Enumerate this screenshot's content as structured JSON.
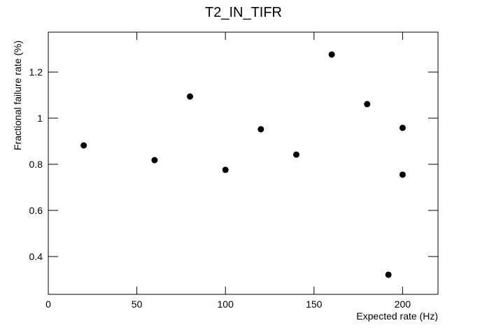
{
  "chart_data": {
    "type": "scatter",
    "title": "T2_IN_TIFR",
    "x_label": "Expected rate (Hz)",
    "y_label": "Fractional failure rate (%)",
    "x": [
      20,
      60,
      80,
      100,
      120,
      140,
      160,
      180,
      200,
      200,
      192
    ],
    "values": [
      0.882,
      0.818,
      1.094,
      0.776,
      0.952,
      0.842,
      1.276,
      1.061,
      0.958,
      0.755,
      0.321
    ],
    "color": "#000000",
    "xlim": [
      0,
      220
    ],
    "ylim": [
      0.236,
      1.373
    ],
    "xticks": [
      0,
      50,
      100,
      150,
      200
    ],
    "yticks": [
      0.4,
      0.6,
      0.8,
      1,
      1.2
    ],
    "grid": false
  }
}
